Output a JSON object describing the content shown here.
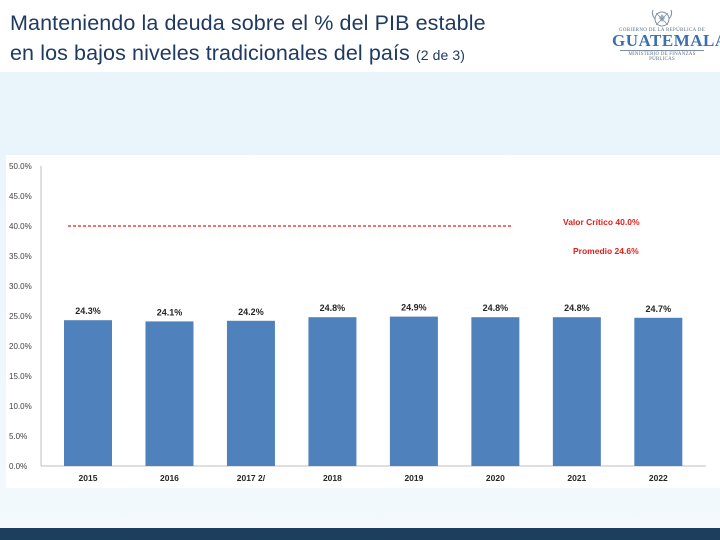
{
  "header": {
    "title_line1": "Manteniendo la deuda sobre el % del PIB estable",
    "title_line2": "en los bajos niveles tradicionales del país",
    "title_suffix": "(2 de 3)"
  },
  "logo": {
    "top_text": "GOBIERNO DE LA REPÚBLICA DE",
    "name": "GUATEMALA",
    "ministry": "MINISTERIO DE FINANZAS PÚBLICAS"
  },
  "colors": {
    "bar": "#4f81bd",
    "reference_line": "#e0201b",
    "title": "#1f3a60",
    "footer": "#1c3f5d"
  },
  "chart_data": {
    "type": "bar",
    "title": "",
    "xlabel": "",
    "ylabel": "",
    "ylim": [
      0,
      50
    ],
    "yticks": [
      0,
      5,
      10,
      15,
      20,
      25,
      30,
      35,
      40,
      45,
      50
    ],
    "ytick_labels": [
      "0.0%",
      "5.0%",
      "10.0%",
      "15.0%",
      "20.0%",
      "25.0%",
      "30.0%",
      "35.0%",
      "40.0%",
      "45.0%",
      "50.0%"
    ],
    "categories": [
      "2015",
      "2016",
      "2017 2/",
      "2018",
      "2019",
      "2020",
      "2021",
      "2022"
    ],
    "values": [
      24.3,
      24.1,
      24.2,
      24.8,
      24.9,
      24.8,
      24.8,
      24.7
    ],
    "value_labels": [
      "24.3%",
      "24.1%",
      "24.2%",
      "24.8%",
      "24.9%",
      "24.8%",
      "24.8%",
      "24.7%"
    ],
    "reference_line": {
      "value": 40.0,
      "style": "dashed",
      "label": "Valor Crítico 40.0%"
    },
    "annotation": {
      "label": "Promedio 24.6%",
      "value": 24.6
    },
    "grid": false,
    "legend": "none"
  }
}
